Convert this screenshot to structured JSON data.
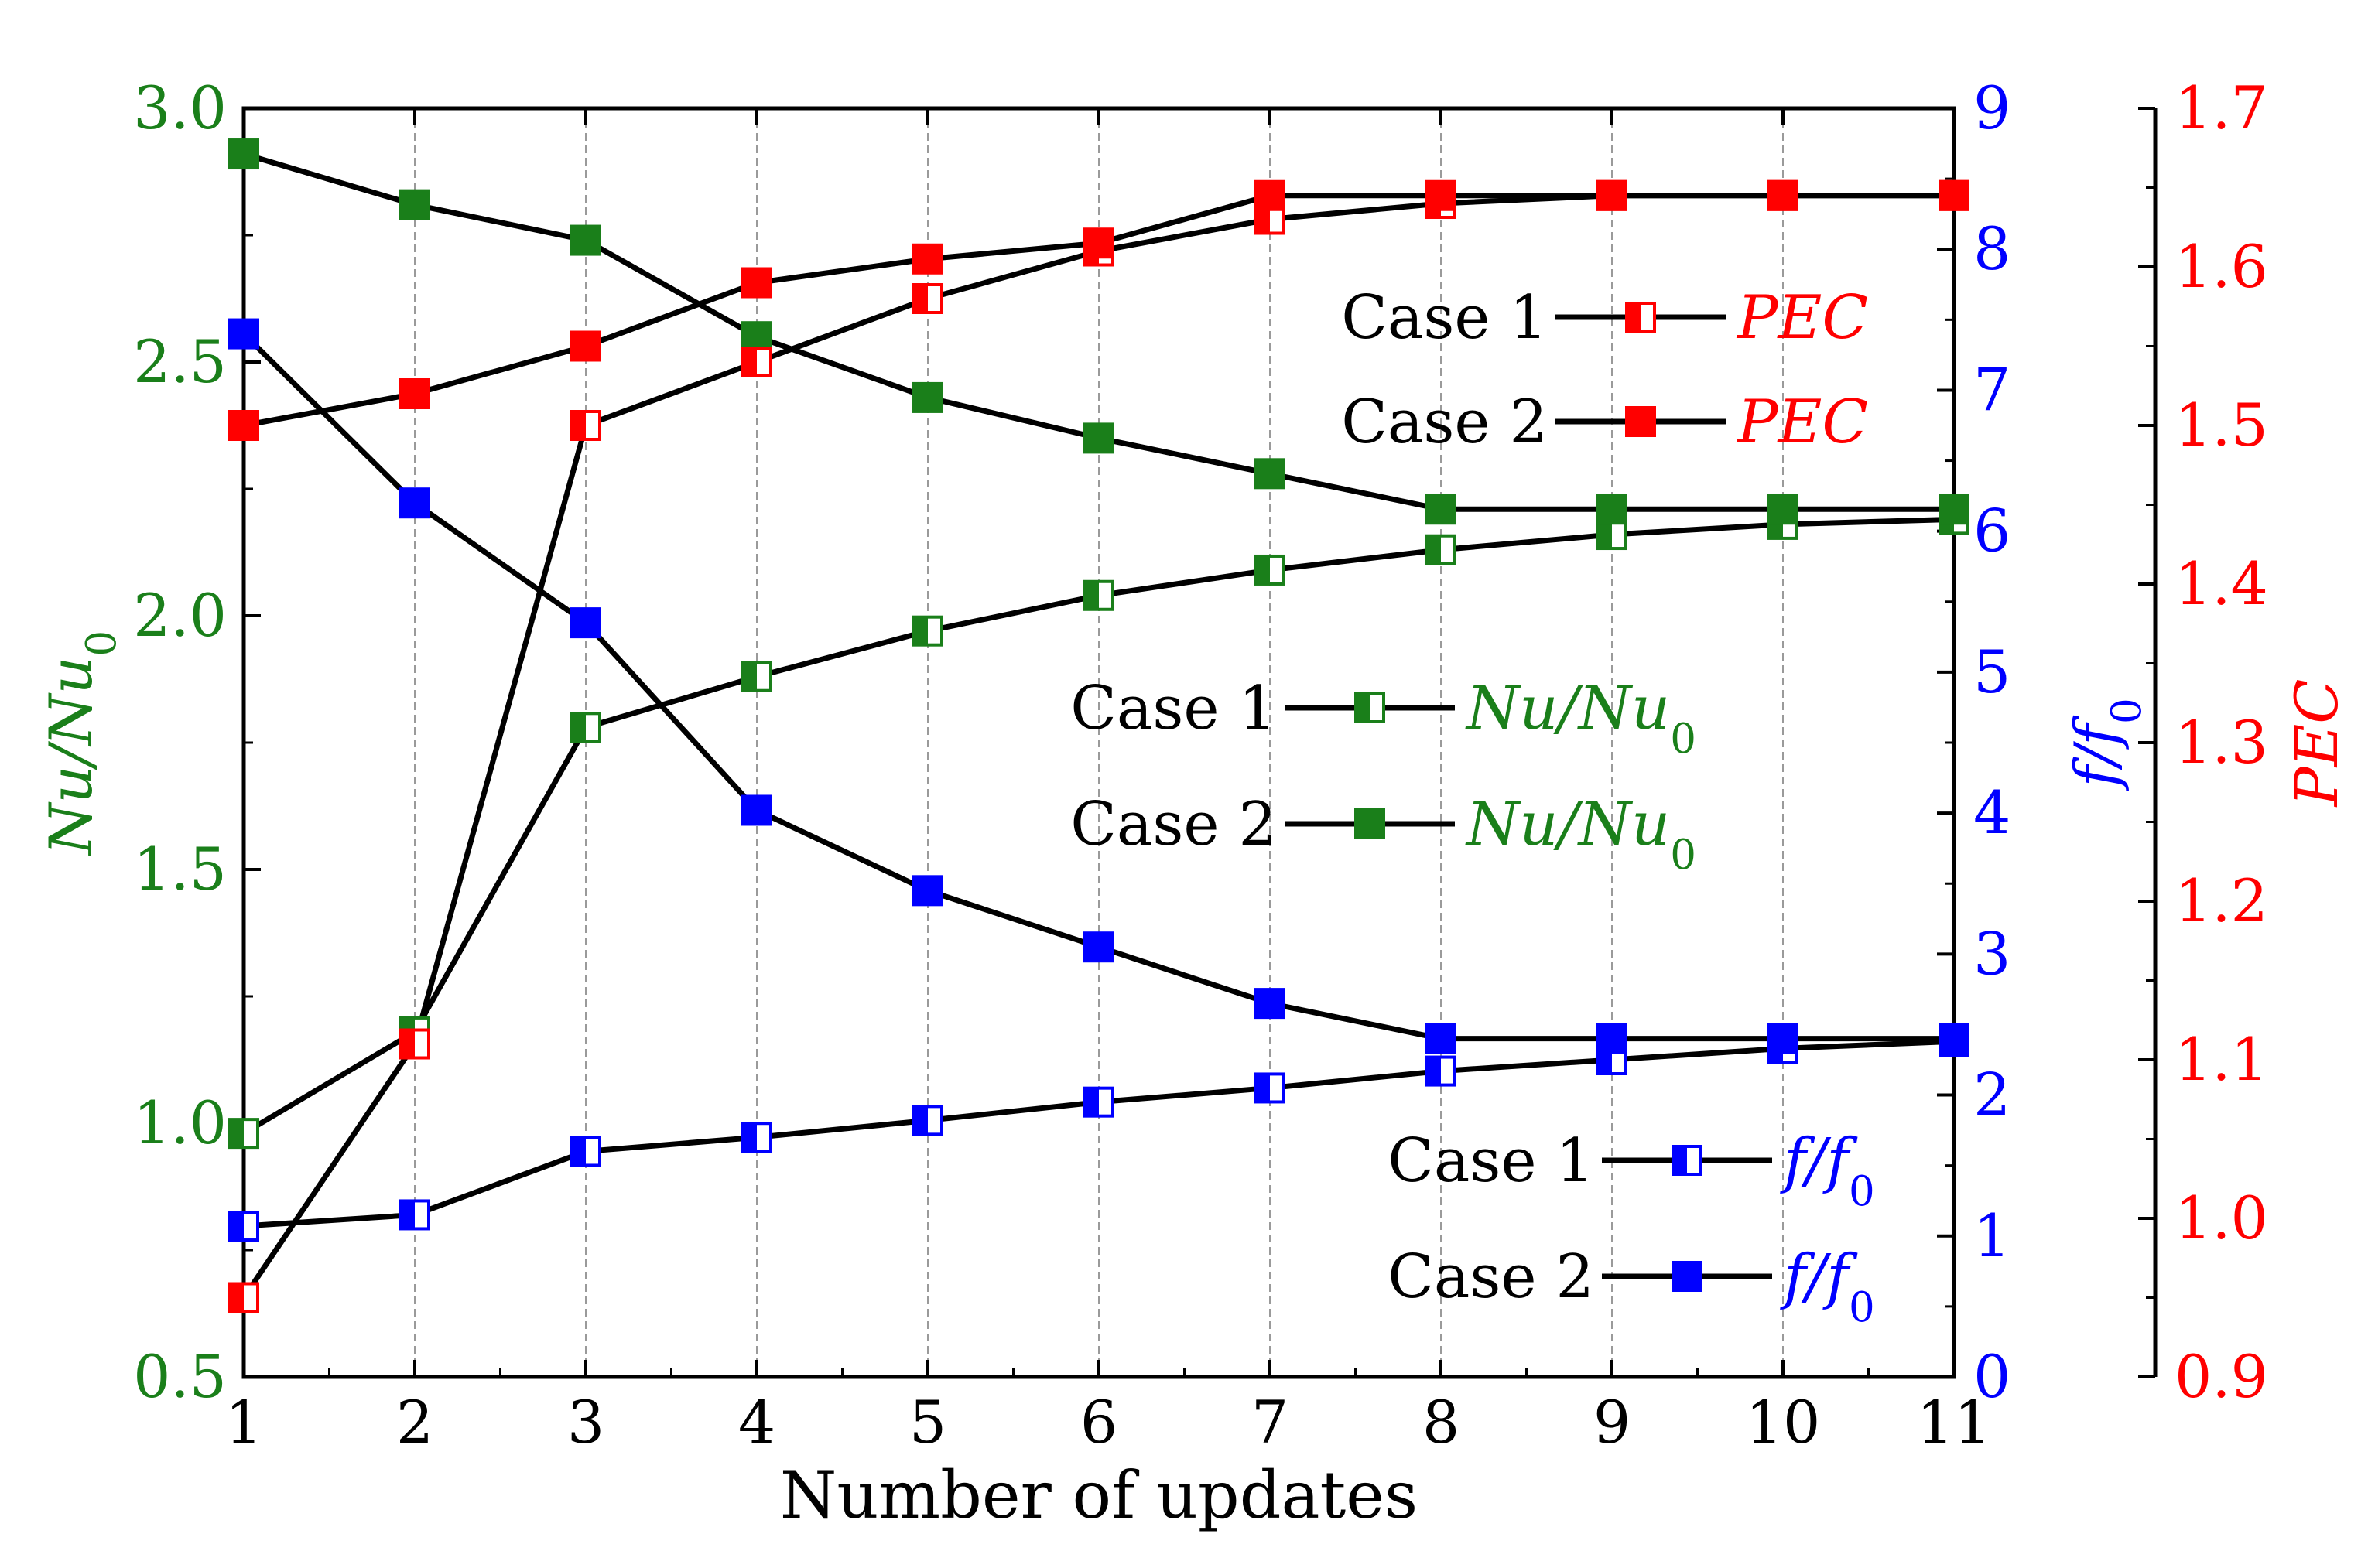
{
  "chart_data": {
    "type": "line",
    "xlabel": "Number of updates",
    "x": [
      1,
      2,
      3,
      4,
      5,
      6,
      7,
      8,
      9,
      10,
      11
    ],
    "xlim": [
      1,
      11
    ],
    "axes": {
      "nu": {
        "label": "Nu/Nu",
        "subscript": "0",
        "ylim": [
          0.5,
          3.0
        ],
        "ticks": [
          0.5,
          1.0,
          1.5,
          2.0,
          2.5,
          3.0
        ],
        "color": "#1a7f1a"
      },
      "f": {
        "label": "f/f",
        "subscript": "0",
        "ylim": [
          0,
          9
        ],
        "ticks": [
          0,
          1,
          2,
          3,
          4,
          5,
          6,
          7,
          8,
          9
        ],
        "color": "#0000ff"
      },
      "pec": {
        "label": "PEC",
        "ylim": [
          0.9,
          1.7
        ],
        "ticks": [
          0.9,
          1.0,
          1.1,
          1.2,
          1.3,
          1.4,
          1.5,
          1.6,
          1.7
        ],
        "color": "#ff0000"
      }
    },
    "series": [
      {
        "name": "Case 1 Nu/Nu0",
        "case": "Case 1",
        "quantity": "Nu/Nu0",
        "axis": "nu",
        "marker": "half",
        "values": [
          0.98,
          1.18,
          1.78,
          1.88,
          1.97,
          2.04,
          2.09,
          2.13,
          2.16,
          2.18,
          2.19
        ]
      },
      {
        "name": "Case 2 Nu/Nu0",
        "case": "Case 2",
        "quantity": "Nu/Nu0",
        "axis": "nu",
        "marker": "solid",
        "values": [
          2.91,
          2.81,
          2.74,
          2.55,
          2.43,
          2.35,
          2.28,
          2.21,
          2.21,
          2.21,
          2.21
        ]
      },
      {
        "name": "Case 1 f/f0",
        "case": "Case 1",
        "quantity": "f/f0",
        "axis": "f",
        "marker": "half",
        "values": [
          1.07,
          1.15,
          1.6,
          1.7,
          1.82,
          1.95,
          2.05,
          2.17,
          2.25,
          2.33,
          2.38
        ]
      },
      {
        "name": "Case 2 f/f0",
        "case": "Case 2",
        "quantity": "f/f0",
        "axis": "f",
        "marker": "solid",
        "values": [
          7.4,
          6.2,
          5.35,
          4.02,
          3.45,
          3.05,
          2.65,
          2.4,
          2.4,
          2.4,
          2.4
        ]
      },
      {
        "name": "Case 1 PEC",
        "case": "Case 1",
        "quantity": "PEC",
        "axis": "pec",
        "marker": "half",
        "values": [
          0.95,
          1.11,
          1.5,
          1.54,
          1.58,
          1.61,
          1.63,
          1.64,
          1.645,
          1.645,
          1.645
        ]
      },
      {
        "name": "Case 2 PEC",
        "case": "Case 2",
        "quantity": "PEC",
        "axis": "pec",
        "marker": "solid",
        "values": [
          1.5,
          1.52,
          1.55,
          1.59,
          1.605,
          1.615,
          1.645,
          1.645,
          1.645,
          1.645,
          1.645
        ]
      }
    ],
    "legend": [
      {
        "case": "Case 1",
        "label": "PEC",
        "axis": "pec",
        "marker": "half"
      },
      {
        "case": "Case 2",
        "label": "PEC",
        "axis": "pec",
        "marker": "solid"
      },
      {
        "case": "Case 1",
        "label": "Nu/Nu",
        "subscript": "0",
        "axis": "nu",
        "marker": "half"
      },
      {
        "case": "Case 2",
        "label": "Nu/Nu",
        "subscript": "0",
        "axis": "nu",
        "marker": "solid"
      },
      {
        "case": "Case 1",
        "label": "f/f",
        "subscript": "0",
        "axis": "f",
        "marker": "half"
      },
      {
        "case": "Case 2",
        "label": "f/f",
        "subscript": "0",
        "axis": "f",
        "marker": "solid"
      }
    ],
    "grid": "vertical dashed"
  }
}
